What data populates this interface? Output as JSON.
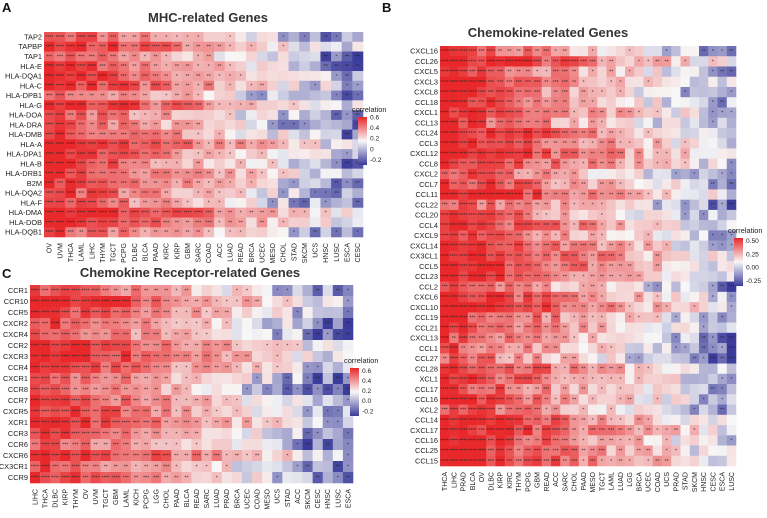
{
  "colors": {
    "high": "#e8282a",
    "mid": "#f7f7f7",
    "low": "#3a3b9a"
  },
  "chart_data": [
    {
      "type": "heatmap",
      "panel": "A",
      "title": "MHC-related Genes",
      "rows": [
        "TAP2",
        "TAPBP",
        "TAP1",
        "HLA-E",
        "HLA-DQA1",
        "HLA-C",
        "HLA-DPB1",
        "HLA-G",
        "HLA-DOA",
        "HLA-DRA",
        "HLA-DMB",
        "HLA-A",
        "HLA-DPA1",
        "HLA-B",
        "HLA-DRB1",
        "B2M",
        "HLA-DQA2",
        "HLA-F",
        "HLA-DMA",
        "HLA-DOB",
        "HLA-DQB1"
      ],
      "columns": [
        "OV",
        "UVM",
        "THCA",
        "LAML",
        "LIHC",
        "THYM",
        "TGCT",
        "PCPG",
        "DLBC",
        "BLCA",
        "PAAD",
        "KIRC",
        "KIRP",
        "GBM",
        "SARC",
        "COAD",
        "ACC",
        "LUAD",
        "READ",
        "BRCA",
        "UCEC",
        "MESO",
        "CHOL",
        "STAD",
        "SKCM",
        "UCS",
        "HNSC",
        "LUSC",
        "ESCA",
        "CESC"
      ],
      "legend": {
        "title": "correlation",
        "ticks": [
          "0.6",
          "0.4",
          "0.2",
          "0",
          "-0.2"
        ],
        "range": [
          -0.3,
          0.6
        ]
      },
      "grid": false
    },
    {
      "type": "heatmap",
      "panel": "B",
      "title": "Chemokine-related Genes",
      "rows": [
        "CXCL16",
        "CCL26",
        "CXCL5",
        "CXCL3",
        "CXCL8",
        "CCL18",
        "CXCL1",
        "CCL13",
        "CCL24",
        "CCL3",
        "CXCL12",
        "CCL8",
        "CXCL2",
        "CCL7",
        "CCL11",
        "CCL22",
        "CCL20",
        "CCL4",
        "CXCL9",
        "CXCL14",
        "CX3CL1",
        "CCL5",
        "CCL23",
        "CCL2",
        "CXCL6",
        "CXCL10",
        "CCL19",
        "CCL21",
        "CXCL13",
        "CCL1",
        "CCL27",
        "CCL28",
        "XCL1",
        "CCL17",
        "CCL16",
        "XCL2",
        "CCL14",
        "CXCL17",
        "CCL16",
        "CCL25",
        "CCL15"
      ],
      "columns": [
        "THCA",
        "LIHC",
        "PRAD",
        "BLCA",
        "OV",
        "DLBC",
        "KIRP",
        "KIRC",
        "THYM",
        "PCPG",
        "GBM",
        "READ",
        "ACC",
        "SARC",
        "CHOL",
        "PAAD",
        "MESO",
        "TGCT",
        "LAML",
        "LUAD",
        "LGG",
        "BRCA",
        "UCEC",
        "COAD",
        "UCS",
        "PRAD",
        "STAD",
        "SKCM",
        "HNSC",
        "CESC",
        "ESCA",
        "LUSC"
      ],
      "legend": {
        "title": "correlation",
        "ticks": [
          "0.50",
          "0.25",
          "0.00",
          "-0.25"
        ],
        "range": [
          -0.35,
          0.55
        ]
      },
      "grid": false
    },
    {
      "type": "heatmap",
      "panel": "C",
      "title": "Chemokine Receptor-related Genes",
      "rows": [
        "CCR1",
        "CCR10",
        "CCR5",
        "CXCR2",
        "CXCR4",
        "CCR2",
        "CXCR3",
        "CCR4",
        "CXCR1",
        "CCR8",
        "CCR7",
        "CXCR5",
        "XCR1",
        "CCR3",
        "CCR6",
        "CXCR6",
        "CX3CR1",
        "CCR9"
      ],
      "columns": [
        "LIHC",
        "THCA",
        "DLBC",
        "KIRP",
        "THYM",
        "OV",
        "UVM",
        "TGCT",
        "GBM",
        "LAML",
        "KICH",
        "PCPG",
        "LGG",
        "CHOL",
        "PAAD",
        "BLCA",
        "READ",
        "SARC",
        "LUAD",
        "PRAD",
        "BRCA",
        "UCEC",
        "COAD",
        "MESO",
        "UCS",
        "STAD",
        "ACC",
        "SKCM",
        "CESC",
        "HNSC",
        "LUSC",
        "ESCA"
      ],
      "legend": {
        "title": "correlation",
        "ticks": [
          "0.6",
          "0.4",
          "0.2",
          "0.0",
          "-0.2"
        ],
        "range": [
          -0.3,
          0.65
        ]
      },
      "grid": false
    }
  ]
}
